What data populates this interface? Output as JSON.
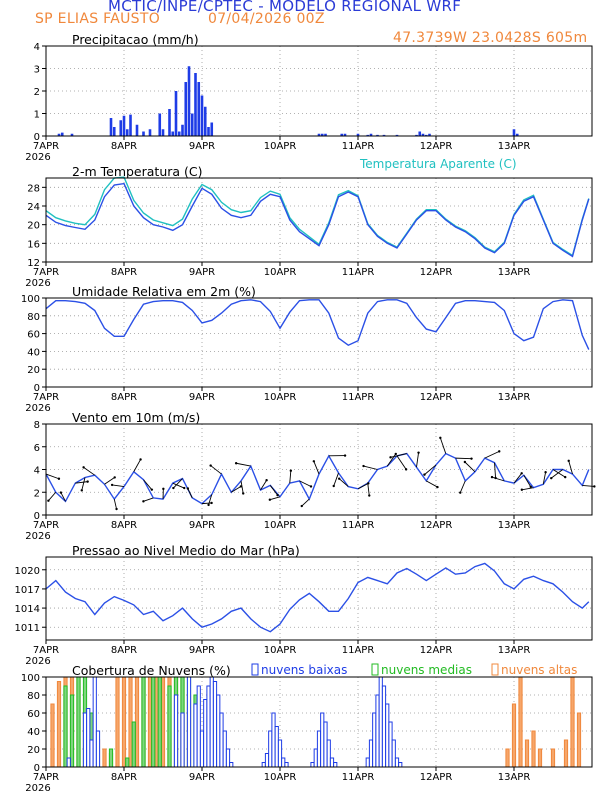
{
  "header": {
    "title": "MCTIC/INPE/CPTEC - MODELO REGIONAL WRF",
    "location": "SP ELIAS FAUSTO",
    "run": "07/04/2026 00Z",
    "coords": "47.3739W 23.0428S 605m"
  },
  "colors": {
    "title": "#2b3bd6",
    "orange": "#f0883c",
    "blue_line": "#2b50e6",
    "cyan_line": "#20c0c0",
    "bar_blue": "#1e3ce6",
    "low_clouds": "#1e3ce6",
    "mid_clouds": "#22bb22",
    "high_clouds": "#f0883c"
  },
  "chart_data": [
    {
      "type": "bar",
      "title": "Precipitacao (mm/h)",
      "ylim": [
        0,
        4
      ],
      "yticks": [
        0,
        1,
        2,
        3,
        4
      ],
      "x_days": [
        "7APR",
        "8APR",
        "9APR",
        "10APR",
        "11APR",
        "12APR",
        "13APR"
      ],
      "x_year": "2026",
      "grid": true,
      "series": [
        {
          "hours": [
            4,
            5,
            8,
            20,
            21,
            23,
            24,
            25,
            26,
            28,
            30,
            32,
            35,
            36,
            38,
            39,
            40,
            41,
            42,
            43,
            44,
            45,
            46,
            47,
            48,
            49,
            50,
            51,
            84,
            85,
            86,
            91,
            92,
            96,
            99,
            100,
            102,
            104,
            108,
            114,
            115,
            116,
            117,
            118,
            144,
            145
          ],
          "values": [
            0.1,
            0.15,
            0.1,
            0.8,
            0.4,
            0.7,
            0.9,
            0.3,
            0.95,
            0.5,
            0.2,
            0.3,
            1.0,
            0.3,
            1.2,
            0.2,
            2.0,
            0.2,
            0.5,
            2.4,
            3.1,
            1.0,
            2.8,
            2.4,
            1.8,
            1.3,
            0.4,
            0.6,
            0.1,
            0.1,
            0.1,
            0.1,
            0.1,
            0.1,
            0.05,
            0.1,
            0.05,
            0.05,
            0.05,
            0.05,
            0.2,
            0.1,
            0.05,
            0.1,
            0.3,
            0.1
          ]
        }
      ]
    },
    {
      "type": "line",
      "title": "2-m Temperatura (C)",
      "ylim": [
        12,
        30
      ],
      "yticks": [
        12,
        16,
        20,
        24,
        28
      ],
      "x_days": [
        "7APR",
        "8APR",
        "9APR",
        "10APR",
        "11APR",
        "12APR",
        "13APR"
      ],
      "x_year": "2026",
      "grid": true,
      "series": [
        {
          "name": "2-m Temperatura (C)",
          "hours": [
            0,
            3,
            6,
            9,
            12,
            15,
            18,
            21,
            24,
            27,
            30,
            33,
            36,
            39,
            42,
            45,
            48,
            51,
            54,
            57,
            60,
            63,
            66,
            69,
            72,
            75,
            78,
            81,
            84,
            87,
            90,
            93,
            96,
            99,
            102,
            105,
            108,
            111,
            114,
            117,
            120,
            123,
            126,
            129,
            132,
            135,
            138,
            141,
            144,
            147,
            150,
            153,
            156,
            159,
            162,
            165,
            167
          ],
          "values": [
            22.0,
            20.5,
            19.8,
            19.4,
            19.0,
            21.0,
            26.0,
            28.5,
            28.8,
            24.0,
            21.5,
            20.0,
            19.5,
            18.8,
            20.0,
            24.0,
            27.8,
            26.5,
            23.5,
            22.0,
            21.5,
            22.0,
            25.0,
            26.5,
            26.0,
            21.0,
            18.5,
            17.0,
            15.5,
            20.0,
            26.0,
            27.0,
            26.0,
            20.0,
            17.5,
            16.0,
            15.0,
            18.0,
            21.0,
            23.0,
            23.0,
            21.0,
            19.5,
            18.5,
            17.0,
            15.0,
            14.0,
            16.0,
            22.0,
            25.0,
            26.0,
            21.0,
            16.0,
            14.5,
            13.2,
            21.0,
            25.5
          ]
        },
        {
          "name": "Temperatura Aparente (C)",
          "hours": [
            0,
            3,
            6,
            9,
            12,
            15,
            18,
            21,
            24,
            27,
            30,
            33,
            36,
            39,
            42,
            45,
            48,
            51,
            54,
            57,
            60,
            63,
            66,
            69,
            72,
            75,
            78,
            81,
            84,
            87,
            90,
            93,
            96,
            99,
            102,
            105,
            108,
            111,
            114,
            117,
            120,
            123,
            126,
            129,
            132,
            135,
            138,
            141,
            144,
            147,
            150,
            153,
            156,
            159,
            162,
            165,
            167
          ],
          "values": [
            23.0,
            21.5,
            20.8,
            20.3,
            20.0,
            22.2,
            27.5,
            30.0,
            30.2,
            25.2,
            22.5,
            21.0,
            20.4,
            19.8,
            21.2,
            25.5,
            28.6,
            27.5,
            24.8,
            23.2,
            22.6,
            23.0,
            25.8,
            27.2,
            26.5,
            21.5,
            19.0,
            17.4,
            15.8,
            20.4,
            26.4,
            27.3,
            26.2,
            20.2,
            17.7,
            16.2,
            15.2,
            18.2,
            21.2,
            23.2,
            23.2,
            21.2,
            19.7,
            18.7,
            17.2,
            15.2,
            14.2,
            16.2,
            22.2,
            25.3,
            26.3,
            21.2,
            16.2,
            14.7,
            13.4,
            21.2,
            25.6
          ]
        }
      ]
    },
    {
      "type": "line",
      "title": "Umidade Relativa em 2m (%)",
      "ylim": [
        0,
        100
      ],
      "yticks": [
        0,
        20,
        40,
        60,
        80,
        100
      ],
      "x_days": [
        "7APR",
        "8APR",
        "9APR",
        "10APR",
        "11APR",
        "12APR",
        "13APR"
      ],
      "x_year": "2026",
      "grid": true,
      "series": [
        {
          "name": "Umidade Relativa",
          "hours": [
            0,
            3,
            6,
            9,
            12,
            15,
            18,
            21,
            24,
            27,
            30,
            33,
            36,
            39,
            42,
            45,
            48,
            51,
            54,
            57,
            60,
            63,
            66,
            69,
            72,
            75,
            78,
            81,
            84,
            87,
            90,
            93,
            96,
            99,
            102,
            105,
            108,
            111,
            114,
            117,
            120,
            123,
            126,
            129,
            132,
            135,
            138,
            141,
            144,
            147,
            150,
            153,
            156,
            159,
            162,
            165,
            167
          ],
          "values": [
            88,
            97,
            97,
            96,
            94,
            86,
            66,
            57,
            57,
            76,
            93,
            96,
            97,
            97,
            95,
            86,
            72,
            75,
            83,
            93,
            97,
            98,
            96,
            85,
            66,
            84,
            97,
            98,
            98,
            83,
            55,
            47,
            52,
            83,
            96,
            98,
            98,
            94,
            78,
            65,
            62,
            78,
            94,
            97,
            97,
            96,
            95,
            86,
            60,
            52,
            56,
            88,
            96,
            98,
            97,
            58,
            42
          ]
        }
      ]
    },
    {
      "type": "line",
      "title": "Vento em 10m (m/s)",
      "ylim": [
        0,
        8
      ],
      "yticks": [
        0,
        2,
        4,
        6,
        8
      ],
      "x_days": [
        "7APR",
        "8APR",
        "9APR",
        "10APR",
        "11APR",
        "12APR",
        "13APR"
      ],
      "x_year": "2026",
      "grid": true,
      "series": [
        {
          "name": "Vento 10m",
          "hours": [
            0,
            3,
            6,
            9,
            12,
            15,
            18,
            21,
            24,
            27,
            30,
            33,
            36,
            39,
            42,
            45,
            48,
            51,
            54,
            57,
            60,
            63,
            66,
            69,
            72,
            75,
            78,
            81,
            84,
            87,
            90,
            93,
            96,
            99,
            102,
            105,
            108,
            111,
            114,
            117,
            120,
            123,
            126,
            129,
            132,
            135,
            138,
            141,
            144,
            147,
            150,
            153,
            156,
            159,
            162,
            165,
            167
          ],
          "values": [
            3.6,
            2.0,
            1.2,
            2.8,
            3.3,
            3.5,
            2.7,
            1.4,
            2.5,
            3.8,
            3.1,
            1.5,
            1.4,
            2.8,
            3.2,
            1.5,
            1.0,
            1.8,
            3.6,
            2.0,
            3.0,
            4.3,
            2.2,
            2.6,
            1.6,
            2.8,
            3.0,
            1.4,
            3.6,
            5.2,
            3.7,
            2.5,
            2.3,
            2.8,
            4.0,
            4.3,
            5.2,
            5.4,
            4.2,
            3.0,
            4.4,
            5.4,
            5.0,
            3.0,
            3.8,
            5.0,
            4.6,
            3.0,
            2.8,
            3.5,
            2.4,
            2.7,
            4.0,
            4.0,
            3.6,
            2.6,
            4.0
          ]
        }
      ]
    },
    {
      "type": "line",
      "title": "Pressao ao Nivel Medio do Mar (hPa)",
      "ylim": [
        1009,
        1022
      ],
      "yticks": [
        1011,
        1014,
        1017,
        1020
      ],
      "x_days": [
        "7APR",
        "8APR",
        "9APR",
        "10APR",
        "11APR",
        "12APR",
        "13APR"
      ],
      "x_year": "2026",
      "grid": true,
      "series": [
        {
          "name": "Pressao",
          "hours": [
            0,
            3,
            6,
            9,
            12,
            15,
            18,
            21,
            24,
            27,
            30,
            33,
            36,
            39,
            42,
            45,
            48,
            51,
            54,
            57,
            60,
            63,
            66,
            69,
            72,
            75,
            78,
            81,
            84,
            87,
            90,
            93,
            96,
            99,
            102,
            105,
            108,
            111,
            114,
            117,
            120,
            123,
            126,
            129,
            132,
            135,
            138,
            141,
            144,
            147,
            150,
            153,
            156,
            159,
            162,
            165,
            167
          ],
          "values": [
            1017.0,
            1018.3,
            1016.5,
            1015.5,
            1015.0,
            1013.0,
            1014.8,
            1015.8,
            1015.2,
            1014.5,
            1013.0,
            1013.5,
            1012.0,
            1012.8,
            1014.0,
            1012.3,
            1011.0,
            1011.5,
            1012.3,
            1013.5,
            1014.0,
            1012.3,
            1011.0,
            1010.3,
            1011.5,
            1013.8,
            1015.3,
            1016.3,
            1015.0,
            1013.5,
            1013.5,
            1015.5,
            1018.0,
            1018.8,
            1018.3,
            1017.8,
            1019.5,
            1020.2,
            1019.3,
            1018.3,
            1019.3,
            1020.3,
            1019.3,
            1019.5,
            1020.5,
            1021.0,
            1019.8,
            1017.8,
            1017.0,
            1018.5,
            1019.0,
            1018.3,
            1017.8,
            1016.5,
            1015.0,
            1014.0,
            1015.0
          ]
        }
      ]
    },
    {
      "type": "bar",
      "title": "Cobertura de Nuvens (%)",
      "ylim": [
        0,
        100
      ],
      "yticks": [
        0,
        20,
        40,
        60,
        80,
        100
      ],
      "x_days": [
        "7APR",
        "8APR",
        "9APR",
        "10APR",
        "11APR",
        "12APR",
        "13APR"
      ],
      "x_year": "2026",
      "grid": true,
      "legend": [
        "nuvens baixas",
        "nuvens medias",
        "nuvens altas"
      ],
      "series": [
        {
          "name": "nuvens baixas",
          "hours": [
            7,
            12,
            13,
            14,
            15,
            16,
            40,
            42,
            44,
            46,
            47,
            48,
            49,
            50,
            51,
            52,
            53,
            54,
            55,
            56,
            57,
            58,
            59,
            60,
            61,
            62,
            63,
            64,
            65,
            66,
            67,
            68,
            69,
            70,
            71,
            72,
            73,
            74,
            75,
            76,
            77,
            78,
            79,
            80,
            81,
            82,
            83,
            84,
            85,
            86,
            87,
            88,
            89,
            90,
            91,
            92,
            93,
            94,
            95,
            96,
            97,
            98,
            99,
            100,
            101,
            102,
            103,
            104,
            105,
            106,
            107,
            108,
            109,
            110,
            111,
            112,
            113,
            114,
            115,
            116,
            117,
            118,
            119,
            120
          ],
          "values": [
            10,
            60,
            65,
            30,
            100,
            40,
            80,
            60,
            100,
            70,
            90,
            40,
            75,
            90,
            100,
            95,
            80,
            60,
            40,
            20,
            5,
            0,
            0,
            0,
            0,
            0,
            0,
            0,
            0,
            0,
            5,
            15,
            40,
            60,
            45,
            30,
            10,
            5,
            0,
            0,
            0,
            0,
            0,
            0,
            0,
            5,
            20,
            40,
            60,
            50,
            30,
            10,
            5,
            0,
            0,
            0,
            0,
            0,
            0,
            0,
            0,
            0,
            10,
            30,
            60,
            80,
            100,
            90,
            70,
            50,
            30,
            10,
            5,
            0,
            0,
            0,
            0,
            0,
            0,
            0,
            0,
            0,
            0,
            0
          ]
        },
        {
          "name": "nuvens medias",
          "hours": [
            6,
            8,
            10,
            12,
            14,
            20,
            25,
            27,
            30,
            33,
            35,
            38,
            40,
            42,
            44,
            46
          ],
          "values": [
            90,
            80,
            100,
            100,
            60,
            20,
            10,
            50,
            100,
            100,
            100,
            90,
            100,
            100,
            100,
            80
          ]
        },
        {
          "name": "nuvens altas",
          "hours": [
            2,
            4,
            6,
            8,
            10,
            12,
            14,
            16,
            18,
            20,
            22,
            24,
            26,
            28,
            30,
            32,
            34,
            36,
            38,
            40,
            42,
            44,
            142,
            144,
            146,
            148,
            150,
            152,
            156,
            160,
            162,
            164
          ],
          "values": [
            70,
            95,
            100,
            100,
            100,
            60,
            40,
            30,
            20,
            15,
            100,
            100,
            100,
            100,
            100,
            100,
            100,
            100,
            100,
            100,
            100,
            80,
            20,
            70,
            100,
            30,
            40,
            20,
            20,
            30,
            100,
            60
          ]
        }
      ]
    }
  ]
}
